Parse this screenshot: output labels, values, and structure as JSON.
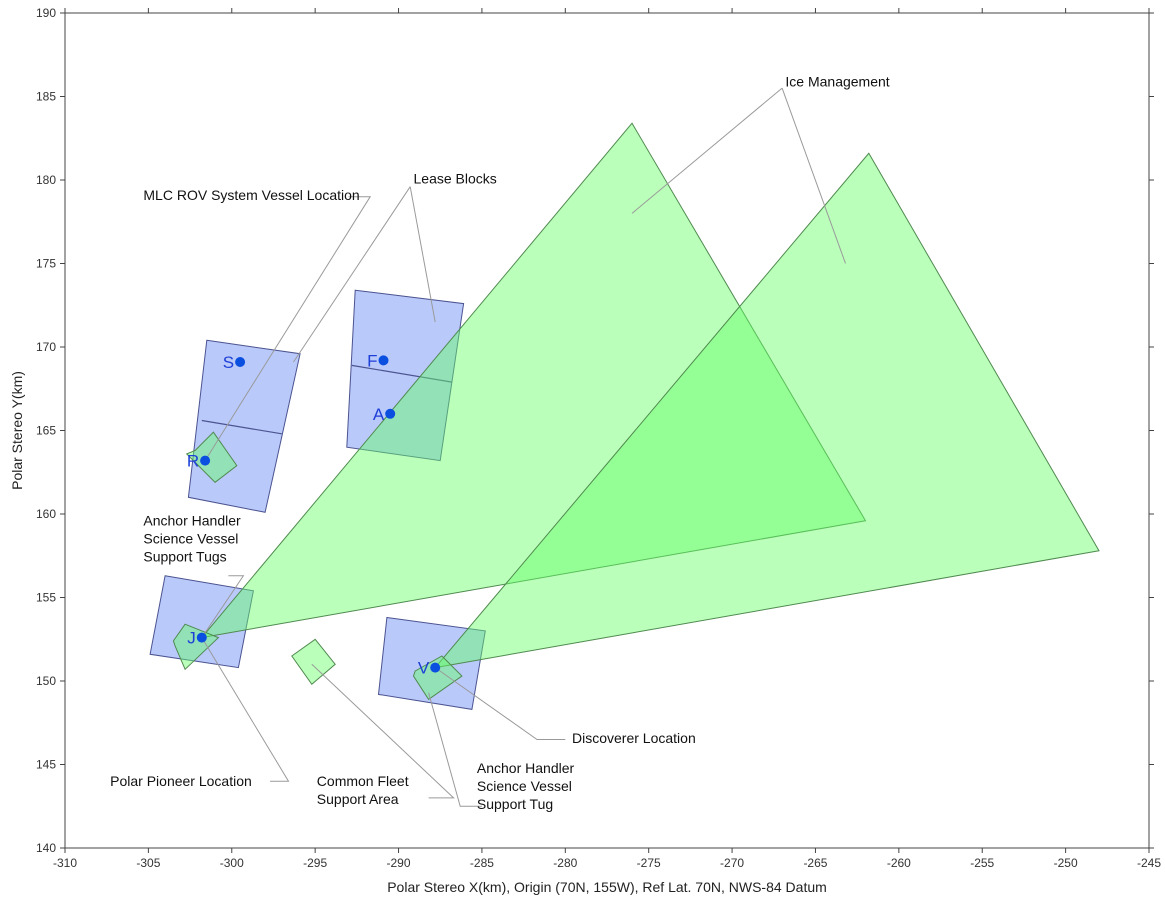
{
  "chart_data": {
    "type": "scatter",
    "xlabel": "Polar Stereo X(km), Origin (70N, 155W), Ref Lat. 70N, NWS-84 Datum",
    "ylabel": "Polar Stereo Y(km)",
    "xlim": [
      -310,
      -245
    ],
    "ylim": [
      140,
      190
    ],
    "x_ticks": [
      -310,
      -305,
      -300,
      -295,
      -290,
      -285,
      -280,
      -275,
      -270,
      -265,
      -260,
      -255,
      -250,
      -245
    ],
    "y_ticks": [
      140,
      145,
      150,
      155,
      160,
      165,
      170,
      175,
      180,
      185,
      190
    ],
    "grid": false,
    "colors": {
      "lease_block_fill": "#7f9cf5",
      "lease_block_stroke": "#4b5390",
      "ice_fill": "#66ff66",
      "ice_stroke": "#4f8a4f",
      "point": "#0b4fe0",
      "point_label": "#1e3fd8"
    },
    "points": [
      {
        "label": "S",
        "x": -299.5,
        "y": 169.1
      },
      {
        "label": "R",
        "x": -301.6,
        "y": 163.2
      },
      {
        "label": "F",
        "x": -290.9,
        "y": 169.2
      },
      {
        "label": "A",
        "x": -290.5,
        "y": 166.0
      },
      {
        "label": "J",
        "x": -301.8,
        "y": 152.6
      },
      {
        "label": "V",
        "x": -287.8,
        "y": 150.8
      }
    ],
    "lease_blocks": [
      {
        "polygon": [
          [
            -301.5,
            170.4
          ],
          [
            -295.9,
            169.6
          ],
          [
            -298.0,
            160.1
          ],
          [
            -302.6,
            161.0
          ]
        ]
      },
      {
        "polygon": [
          [
            -292.6,
            173.4
          ],
          [
            -286.1,
            172.6
          ],
          [
            -287.5,
            163.2
          ],
          [
            -293.1,
            164.0
          ]
        ]
      },
      {
        "polygon": [
          [
            -304.0,
            156.3
          ],
          [
            -298.7,
            155.4
          ],
          [
            -299.6,
            150.8
          ],
          [
            -304.9,
            151.6
          ]
        ]
      },
      {
        "polygon": [
          [
            -290.7,
            153.8
          ],
          [
            -284.8,
            153.0
          ],
          [
            -285.6,
            148.3
          ],
          [
            -291.2,
            149.2
          ]
        ]
      }
    ],
    "lease_block_dividers": [
      [
        [
          -301.8,
          165.6
        ],
        [
          -297.0,
          164.8
        ]
      ],
      [
        [
          -292.8,
          168.9
        ],
        [
          -286.8,
          167.9
        ]
      ]
    ],
    "ice_management_areas": [
      {
        "polygon": [
          [
            -301.8,
            152.6
          ],
          [
            -276.0,
            183.4
          ],
          [
            -262.0,
            159.6
          ]
        ]
      },
      {
        "polygon": [
          [
            -287.8,
            150.8
          ],
          [
            -261.8,
            181.6
          ],
          [
            -248.0,
            157.8
          ]
        ]
      }
    ],
    "support_areas": [
      {
        "polygon": [
          [
            -302.2,
            163.8
          ],
          [
            -301.1,
            164.9
          ],
          [
            -299.7,
            162.9
          ],
          [
            -301.0,
            161.9
          ],
          [
            -302.7,
            163.6
          ]
        ]
      },
      {
        "polygon": [
          [
            -303.5,
            152.4
          ],
          [
            -302.8,
            153.4
          ],
          [
            -300.8,
            152.6
          ],
          [
            -302.8,
            150.7
          ],
          [
            -303.4,
            152.1
          ]
        ]
      },
      {
        "polygon": [
          [
            -296.4,
            151.5
          ],
          [
            -295.0,
            152.5
          ],
          [
            -293.8,
            151.0
          ],
          [
            -295.2,
            149.8
          ]
        ]
      },
      {
        "polygon": [
          [
            -289.0,
            150.6
          ],
          [
            -287.4,
            151.5
          ],
          [
            -286.2,
            150.3
          ],
          [
            -288.2,
            148.9
          ],
          [
            -289.1,
            150.3
          ]
        ]
      }
    ],
    "annotations": [
      {
        "id": "ice",
        "text": [
          "Ice Management"
        ],
        "x": -266.8,
        "y": 185.6,
        "anchor": "start",
        "leaders": [
          [
            [
              -267.0,
              185.5
            ],
            [
              -276.0,
              178.0
            ]
          ],
          [
            [
              -267.0,
              185.5
            ],
            [
              -263.2,
              175.0
            ]
          ]
        ]
      },
      {
        "id": "lease",
        "text": [
          "Lease Blocks"
        ],
        "x": -289.1,
        "y": 179.8,
        "anchor": "start",
        "leaders": [
          [
            [
              -289.3,
              179.6
            ],
            [
              -296.3,
              169.1
            ]
          ],
          [
            [
              -289.3,
              179.6
            ],
            [
              -287.8,
              171.5
            ]
          ]
        ]
      },
      {
        "id": "mlc",
        "text": [
          "MLC ROV System Vessel Location"
        ],
        "x": -305.3,
        "y": 178.8,
        "anchor": "start",
        "leaders": [
          [
            [
              -293.0,
              179.0
            ],
            [
              -291.7,
              179.0
            ],
            [
              -301.6,
              163.2
            ]
          ]
        ]
      },
      {
        "id": "anchor-j",
        "text": [
          "Anchor Handler",
          "Science Vessel",
          "Support Tugs"
        ],
        "x": -305.3,
        "y": 159.3,
        "anchor": "start",
        "leaders": [
          [
            [
              -300.2,
              156.3
            ],
            [
              -299.3,
              156.3
            ],
            [
              -301.8,
              152.6
            ]
          ]
        ]
      },
      {
        "id": "pioneer",
        "text": [
          "Polar Pioneer Location"
        ],
        "x": -298.8,
        "y": 143.7,
        "anchor": "end",
        "leaders": [
          [
            [
              -297.7,
              144.0
            ],
            [
              -296.6,
              144.0
            ],
            [
              -301.8,
              152.6
            ]
          ]
        ]
      },
      {
        "id": "fleet",
        "text": [
          "Common Fleet",
          "Support Area"
        ],
        "x": -294.9,
        "y": 143.7,
        "anchor": "start",
        "leaders": [
          [
            [
              -288.2,
              143.0
            ],
            [
              -286.7,
              143.0
            ],
            [
              -295.2,
              151.0
            ]
          ]
        ]
      },
      {
        "id": "anchor-v",
        "text": [
          "Anchor Handler",
          "Science Vessel",
          "Support Tug"
        ],
        "x": -285.3,
        "y": 144.5,
        "anchor": "start",
        "leaders": [
          [
            [
              -285.0,
              142.5
            ],
            [
              -286.3,
              142.5
            ],
            [
              -288.2,
              149.3
            ]
          ]
        ]
      },
      {
        "id": "discoverer",
        "text": [
          "Discoverer Location"
        ],
        "x": -279.6,
        "y": 146.3,
        "anchor": "start",
        "leaders": [
          [
            [
              -280.0,
              146.5
            ],
            [
              -281.7,
              146.5
            ],
            [
              -287.8,
              150.8
            ]
          ]
        ]
      }
    ]
  }
}
